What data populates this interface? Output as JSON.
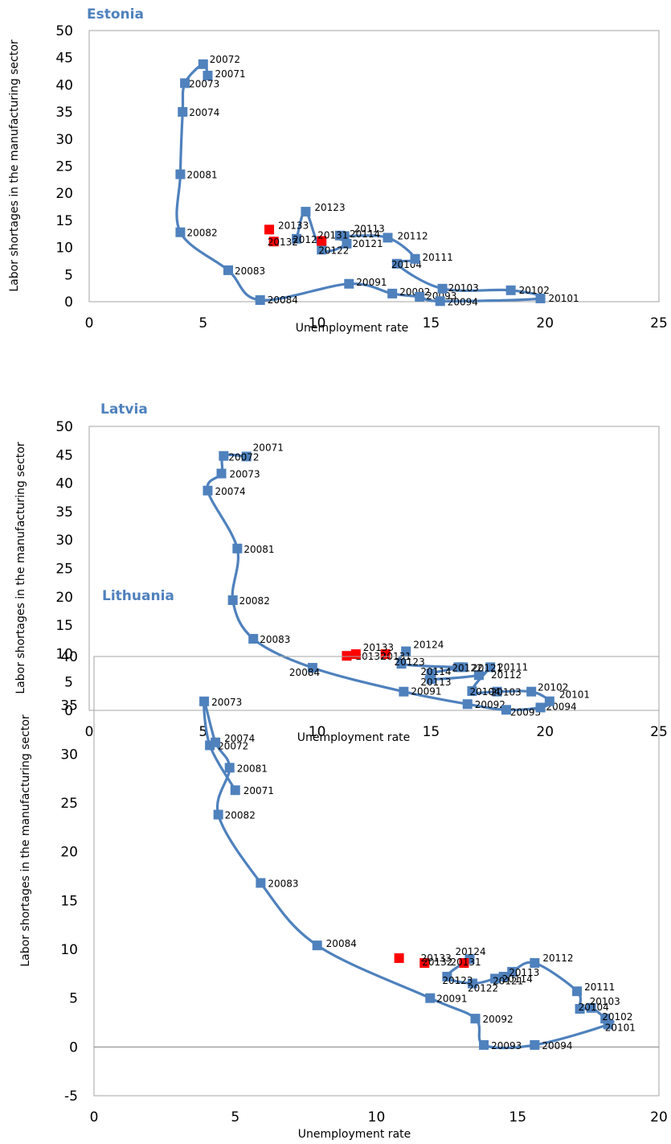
{
  "chart_data": [
    {
      "type": "scatter",
      "title": "Estonia",
      "xlabel": "Unemployment rate",
      "ylabel": "Labor shortages in the manufacturing sector",
      "xlim": [
        0,
        25
      ],
      "ylim": [
        0,
        50
      ],
      "xticks": [
        0,
        5,
        10,
        15,
        20,
        25
      ],
      "yticks": [
        0,
        5,
        10,
        15,
        20,
        25,
        30,
        35,
        40,
        45,
        50
      ],
      "grid": false,
      "line_color": "#4f81bd",
      "highlight_color": "#ff0000",
      "points": [
        {
          "label": "20071",
          "x": 5.2,
          "y": 41.7
        },
        {
          "label": "20072",
          "x": 5.0,
          "y": 43.8
        },
        {
          "label": "20073",
          "x": 4.2,
          "y": 40.3
        },
        {
          "label": "20074",
          "x": 4.1,
          "y": 35.0
        },
        {
          "label": "20081",
          "x": 4.0,
          "y": 23.5
        },
        {
          "label": "20082",
          "x": 4.0,
          "y": 12.8
        },
        {
          "label": "20083",
          "x": 6.1,
          "y": 5.8
        },
        {
          "label": "20084",
          "x": 7.5,
          "y": 0.3
        },
        {
          "label": "20091",
          "x": 11.4,
          "y": 3.3
        },
        {
          "label": "20092",
          "x": 13.3,
          "y": 1.5
        },
        {
          "label": "20093",
          "x": 14.5,
          "y": 0.9
        },
        {
          "label": "20094",
          "x": 15.4,
          "y": 0.1
        },
        {
          "label": "20101",
          "x": 19.8,
          "y": 0.6
        },
        {
          "label": "20102",
          "x": 18.5,
          "y": 2.1
        },
        {
          "label": "20103",
          "x": 15.5,
          "y": 2.4
        },
        {
          "label": "20104",
          "x": 13.5,
          "y": 7.0
        },
        {
          "label": "20111",
          "x": 14.3,
          "y": 7.9
        },
        {
          "label": "20112",
          "x": 13.1,
          "y": 11.8
        },
        {
          "label": "20113",
          "x": 11.2,
          "y": 12.1
        },
        {
          "label": "20114",
          "x": 11.0,
          "y": 12.2
        },
        {
          "label": "20121",
          "x": 11.3,
          "y": 10.7
        },
        {
          "label": "20122",
          "x": 10.2,
          "y": 9.6
        },
        {
          "label": "20123",
          "x": 9.5,
          "y": 16.6
        },
        {
          "label": "20124",
          "x": 9.1,
          "y": 11.6
        },
        {
          "label": "20131",
          "x": 10.2,
          "y": 11.2
        },
        {
          "label": "20132",
          "x": 8.1,
          "y": 11.1
        },
        {
          "label": "20133",
          "x": 7.9,
          "y": 13.3
        }
      ],
      "highlighted": [
        "20131",
        "20132",
        "20133"
      ]
    },
    {
      "type": "scatter",
      "title": "Latvia",
      "xlabel": "Unemployment rate",
      "ylabel": "Labor shortages in the manufacturing sector",
      "xlim": [
        0,
        25
      ],
      "ylim": [
        0,
        50
      ],
      "xticks": [
        0,
        5,
        10,
        15,
        20,
        25
      ],
      "yticks": [
        0,
        5,
        10,
        15,
        20,
        25,
        30,
        35,
        40,
        45,
        50
      ],
      "grid": false,
      "line_color": "#4f81bd",
      "highlight_color": "#ff0000",
      "points": [
        {
          "label": "20071",
          "x": 6.9,
          "y": 44.7
        },
        {
          "label": "20072",
          "x": 5.9,
          "y": 44.8
        },
        {
          "label": "20073",
          "x": 5.8,
          "y": 41.7
        },
        {
          "label": "20074",
          "x": 5.2,
          "y": 38.7
        },
        {
          "label": "20081",
          "x": 6.5,
          "y": 28.5
        },
        {
          "label": "20082",
          "x": 6.3,
          "y": 19.4
        },
        {
          "label": "20083",
          "x": 7.2,
          "y": 12.6
        },
        {
          "label": "20084",
          "x": 9.8,
          "y": 7.5
        },
        {
          "label": "20091",
          "x": 13.8,
          "y": 3.3
        },
        {
          "label": "20092",
          "x": 16.6,
          "y": 1.1
        },
        {
          "label": "20093",
          "x": 18.3,
          "y": 0.1
        },
        {
          "label": "20094",
          "x": 19.8,
          "y": 0.5
        },
        {
          "label": "20101",
          "x": 20.2,
          "y": 1.6
        },
        {
          "label": "20102",
          "x": 19.4,
          "y": 3.3
        },
        {
          "label": "20103",
          "x": 17.9,
          "y": 3.3
        },
        {
          "label": "20104",
          "x": 16.8,
          "y": 3.4
        },
        {
          "label": "20111",
          "x": 17.6,
          "y": 7.6
        },
        {
          "label": "20112",
          "x": 17.1,
          "y": 6.2
        },
        {
          "label": "20113",
          "x": 15.0,
          "y": 5.5
        },
        {
          "label": "20114",
          "x": 15.0,
          "y": 6.5
        },
        {
          "label": "20121",
          "x": 16.4,
          "y": 7.6
        },
        {
          "label": "20122",
          "x": 16.2,
          "y": 7.6
        },
        {
          "label": "20123",
          "x": 13.7,
          "y": 8.2
        },
        {
          "label": "20124",
          "x": 13.9,
          "y": 10.4
        },
        {
          "label": "20131",
          "x": 13.0,
          "y": 9.9
        },
        {
          "label": "20132",
          "x": 11.3,
          "y": 9.6
        },
        {
          "label": "20133",
          "x": 11.7,
          "y": 9.9
        }
      ],
      "highlighted": [
        "20131",
        "20132",
        "20133"
      ]
    },
    {
      "type": "scatter",
      "title": "Lithuania",
      "xlabel": "Unemployment rate",
      "ylabel": "Labor shortages in the manufacturing sector",
      "xlim": [
        0,
        20
      ],
      "ylim": [
        -5,
        40
      ],
      "xticks": [
        0,
        5,
        10,
        15,
        20
      ],
      "yticks": [
        -5,
        0,
        5,
        10,
        15,
        20,
        25,
        30,
        35,
        40
      ],
      "grid": false,
      "zero_line": true,
      "line_color": "#4f81bd",
      "highlight_color": "#ff0000",
      "points": [
        {
          "label": "20071",
          "x": 5.0,
          "y": 26.3
        },
        {
          "label": "20072",
          "x": 4.1,
          "y": 30.9
        },
        {
          "label": "20073",
          "x": 3.9,
          "y": 35.4
        },
        {
          "label": "20074",
          "x": 4.3,
          "y": 31.2
        },
        {
          "label": "20081",
          "x": 4.8,
          "y": 28.6
        },
        {
          "label": "20082",
          "x": 4.4,
          "y": 23.8
        },
        {
          "label": "20083",
          "x": 5.9,
          "y": 16.8
        },
        {
          "label": "20084",
          "x": 7.9,
          "y": 10.4
        },
        {
          "label": "20091",
          "x": 11.9,
          "y": 5.0
        },
        {
          "label": "20092",
          "x": 13.5,
          "y": 2.9
        },
        {
          "label": "20093",
          "x": 13.8,
          "y": 0.2
        },
        {
          "label": "20094",
          "x": 15.6,
          "y": 0.2
        },
        {
          "label": "20101",
          "x": 18.2,
          "y": 2.3
        },
        {
          "label": "20102",
          "x": 18.1,
          "y": 2.9
        },
        {
          "label": "20103",
          "x": 17.6,
          "y": 4.0
        },
        {
          "label": "20104",
          "x": 17.2,
          "y": 3.9
        },
        {
          "label": "20111",
          "x": 17.1,
          "y": 5.7
        },
        {
          "label": "20112",
          "x": 15.6,
          "y": 8.6
        },
        {
          "label": "20113",
          "x": 14.8,
          "y": 7.7
        },
        {
          "label": "20114",
          "x": 14.5,
          "y": 7.2
        },
        {
          "label": "20121",
          "x": 14.2,
          "y": 7.0
        },
        {
          "label": "20122",
          "x": 13.4,
          "y": 6.5
        },
        {
          "label": "20123",
          "x": 12.5,
          "y": 7.2
        },
        {
          "label": "20124",
          "x": 13.3,
          "y": 9.0
        },
        {
          "label": "20131",
          "x": 13.1,
          "y": 8.6
        },
        {
          "label": "20132",
          "x": 11.7,
          "y": 8.6
        },
        {
          "label": "20133",
          "x": 10.8,
          "y": 9.1
        }
      ],
      "highlighted": [
        "20131",
        "20132",
        "20133"
      ]
    }
  ]
}
